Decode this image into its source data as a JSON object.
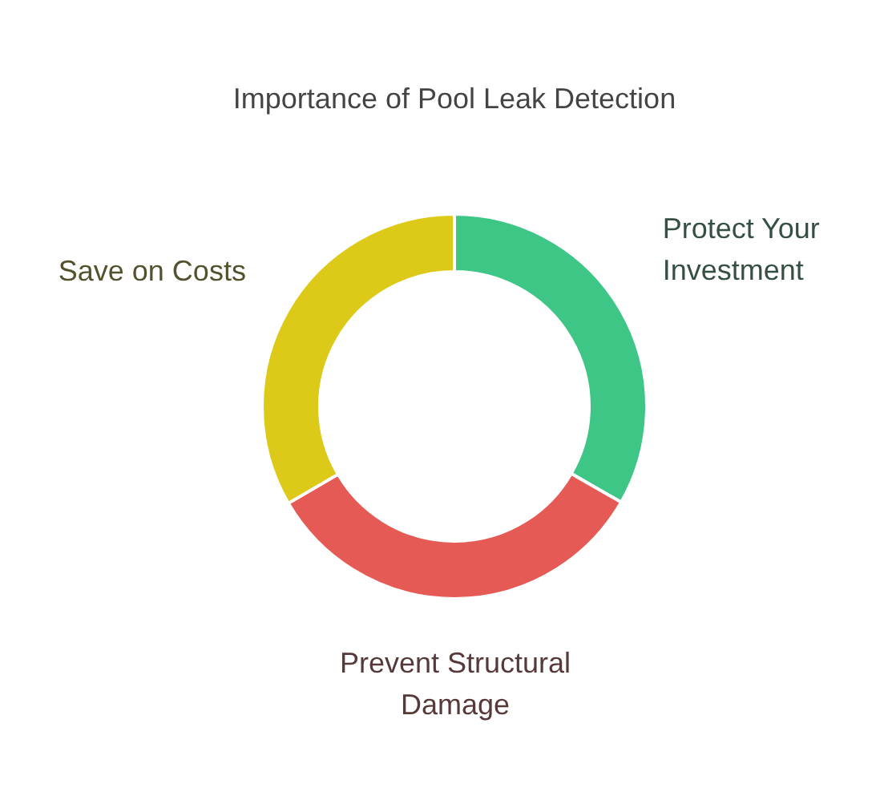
{
  "chart_data": {
    "type": "donut",
    "title": "Importance of Pool Leak Detection",
    "categories": [
      "Protect Your Investment",
      "Prevent Structural Damage",
      "Save on Costs"
    ],
    "values": [
      33.3,
      33.3,
      33.4
    ],
    "colors": [
      "#3ec687",
      "#e65a55",
      "#dcc918"
    ]
  }
}
